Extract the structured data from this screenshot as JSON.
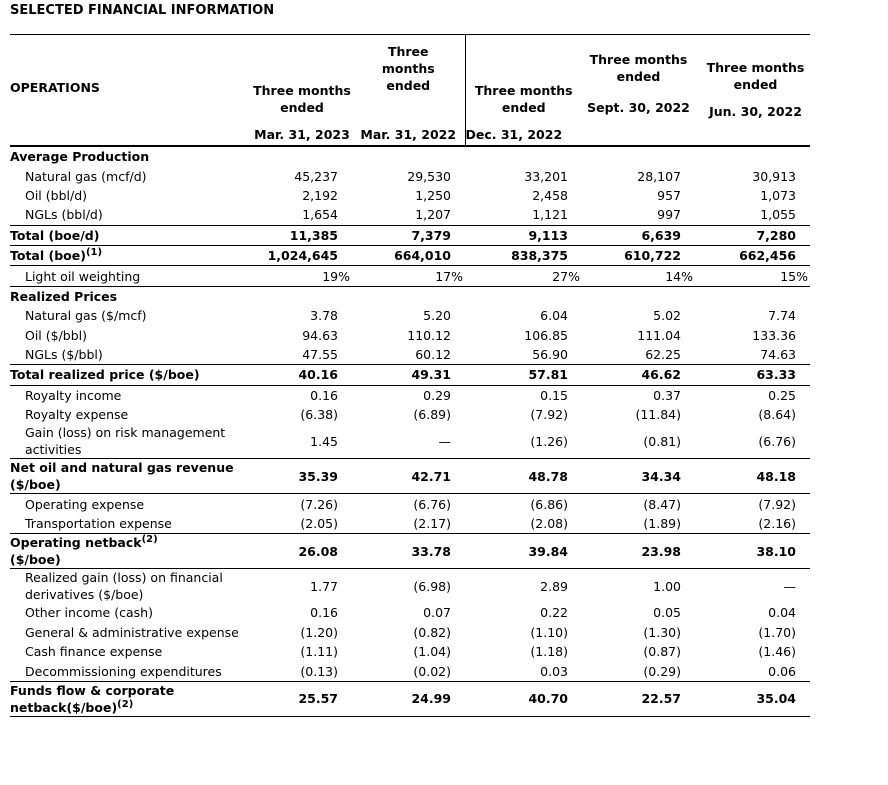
{
  "title": "SELECTED FINANCIAL INFORMATION",
  "table": {
    "header": {
      "label": "OPERATIONS",
      "columns": [
        {
          "heading": "Three months ended",
          "date": "Mar. 31, 2023"
        },
        {
          "heading": "Three months ended",
          "date": "Mar. 31, 2022"
        },
        {
          "heading": "Three months ended",
          "date": "Dec. 31, 2022"
        },
        {
          "heading": "Three months ended",
          "date": "Sept. 30, 2022"
        },
        {
          "heading": "Three months ended",
          "date": "Jun. 30, 2022"
        }
      ]
    },
    "rows": [
      {
        "style": "section",
        "label": "Average Production"
      },
      {
        "style": "item",
        "label": "Natural gas (mcf/d)",
        "values": [
          "45,237",
          "29,530",
          "33,201",
          "28,107",
          "30,913"
        ]
      },
      {
        "style": "item",
        "label": "Oil (bbl/d)",
        "values": [
          "2,192",
          "1,250",
          "2,458",
          "957",
          "1,073"
        ]
      },
      {
        "style": "item",
        "label": "NGLs (bbl/d)",
        "values": [
          "1,654",
          "1,207",
          "1,121",
          "997",
          "1,055"
        ]
      },
      {
        "style": "total",
        "label": "Total (boe/d)",
        "values": [
          "11,385",
          "7,379",
          "9,113",
          "6,639",
          "7,280"
        ]
      },
      {
        "style": "total",
        "label": "Total (boe)",
        "note": "(1)",
        "values": [
          "1,024,645",
          "664,010",
          "838,375",
          "610,722",
          "662,456"
        ]
      },
      {
        "style": "ratio",
        "label": "Light oil weighting",
        "values": [
          "19%",
          "17%",
          "27%",
          "14%",
          "15%"
        ]
      },
      {
        "style": "section",
        "label": "Realized Prices"
      },
      {
        "style": "item",
        "label": "Natural gas ($/mcf)",
        "values": [
          "3.78",
          "5.20",
          "6.04",
          "5.02",
          "7.74"
        ]
      },
      {
        "style": "item",
        "label": "Oil ($/bbl)",
        "values": [
          "94.63",
          "110.12",
          "106.85",
          "111.04",
          "133.36"
        ]
      },
      {
        "style": "item",
        "label": "NGLs ($/bbl)",
        "values": [
          "47.55",
          "60.12",
          "56.90",
          "62.25",
          "74.63"
        ]
      },
      {
        "style": "total",
        "label": "Total realized price ($/boe)",
        "values": [
          "40.16",
          "49.31",
          "57.81",
          "46.62",
          "63.33"
        ]
      },
      {
        "style": "item",
        "label": "Royalty income",
        "values": [
          "0.16",
          "0.29",
          "0.15",
          "0.37",
          "0.25"
        ]
      },
      {
        "style": "item",
        "label": "Royalty expense",
        "values": [
          "(6.38)",
          "(6.89)",
          "(7.92)",
          "(11.84)",
          "(8.64)"
        ]
      },
      {
        "style": "item",
        "label": "Gain (loss) on risk management activities",
        "values": [
          "1.45",
          "—",
          "(1.26)",
          "(0.81)",
          "(6.76)"
        ]
      },
      {
        "style": "total",
        "label": "Net oil and natural gas revenue ($/boe)",
        "values": [
          "35.39",
          "42.71",
          "48.78",
          "34.34",
          "48.18"
        ]
      },
      {
        "style": "item",
        "label": "Operating expense",
        "values": [
          "(7.26)",
          "(6.76)",
          "(6.86)",
          "(8.47)",
          "(7.92)"
        ]
      },
      {
        "style": "item",
        "label": "Transportation expense",
        "values": [
          "(2.05)",
          "(2.17)",
          "(2.08)",
          "(1.89)",
          "(2.16)"
        ]
      },
      {
        "style": "total",
        "label": "Operating netback",
        "note": "(2)",
        "label_tail": "($/boe)",
        "values": [
          "26.08",
          "33.78",
          "39.84",
          "23.98",
          "38.10"
        ]
      },
      {
        "style": "item",
        "label": "Realized gain (loss) on financial derivatives ($/boe)",
        "values": [
          "1.77",
          "(6.98)",
          "2.89",
          "1.00",
          "—"
        ]
      },
      {
        "style": "item",
        "label": "Other income (cash)",
        "values": [
          "0.16",
          "0.07",
          "0.22",
          "0.05",
          "0.04"
        ]
      },
      {
        "style": "item",
        "label": "General & administrative expense",
        "values": [
          "(1.20)",
          "(0.82)",
          "(1.10)",
          "(1.30)",
          "(1.70)"
        ]
      },
      {
        "style": "item",
        "label": "Cash finance expense",
        "values": [
          "(1.11)",
          "(1.04)",
          "(1.18)",
          "(0.87)",
          "(1.46)"
        ]
      },
      {
        "style": "item",
        "label": "Decommissioning expenditures",
        "values": [
          "(0.13)",
          "(0.02)",
          "0.03",
          "(0.29)",
          "0.06"
        ]
      },
      {
        "style": "total",
        "label": "Funds flow & corporate netback($/boe)",
        "note": "(2)",
        "values": [
          "25.57",
          "24.99",
          "40.70",
          "22.57",
          "35.04"
        ]
      }
    ]
  }
}
